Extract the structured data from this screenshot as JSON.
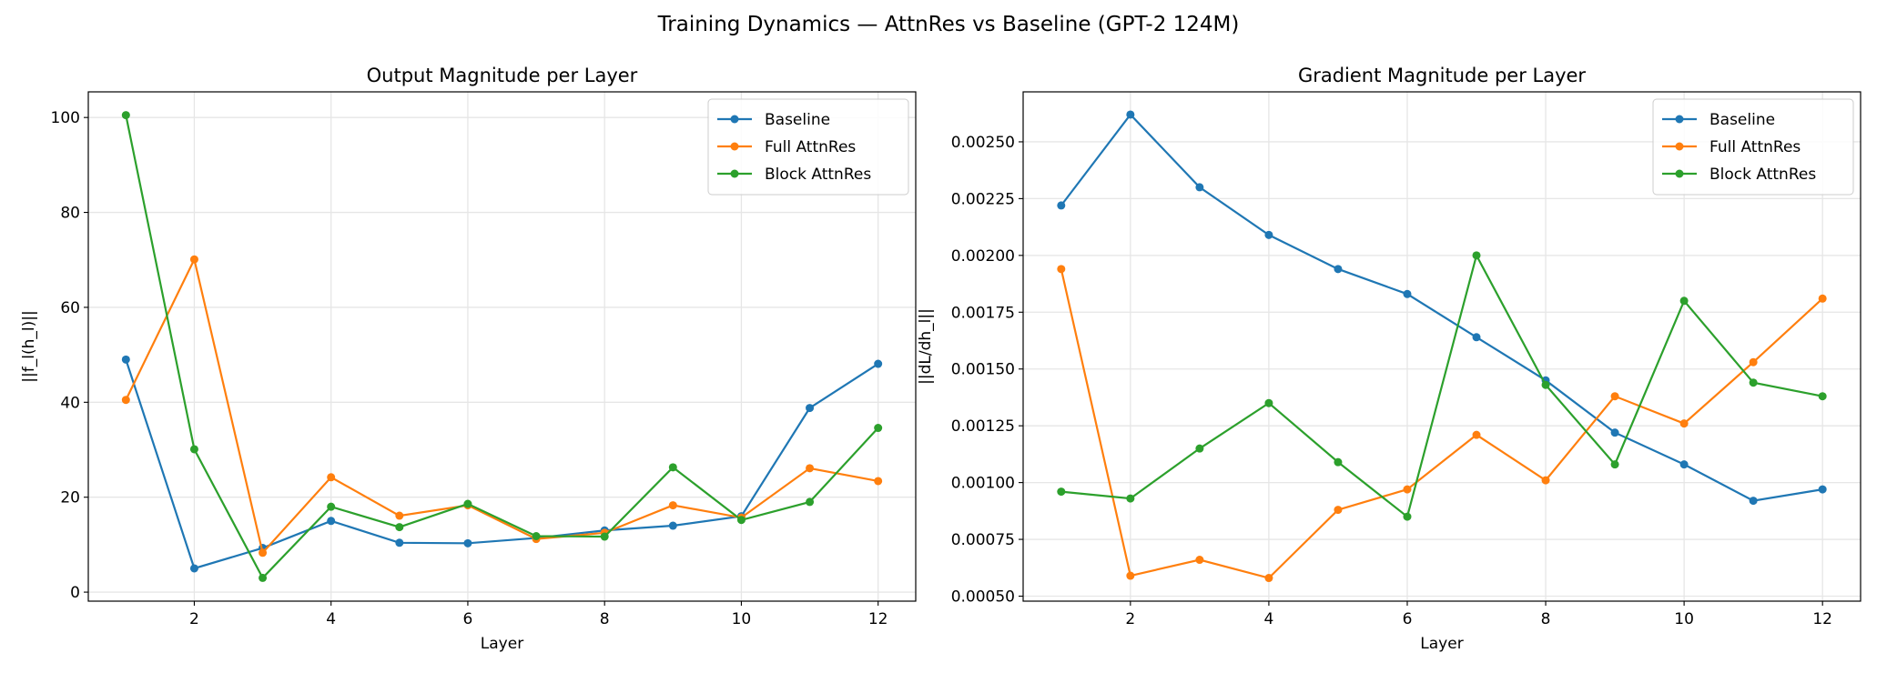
{
  "suptitle": "Training Dynamics — AttnRes vs Baseline (GPT-2 124M)",
  "colors": {
    "Baseline": "#1f77b4",
    "Full AttnRes": "#ff7f0e",
    "Block AttnRes": "#2ca02c",
    "grid": "#e6e6e6"
  },
  "chart_data": [
    {
      "type": "line",
      "title": "Output Magnitude per Layer",
      "xlabel": "Layer",
      "ylabel": "||f_l(h_l)||",
      "x": [
        1,
        2,
        3,
        4,
        5,
        6,
        7,
        8,
        9,
        10,
        11,
        12
      ],
      "xlim": [
        0.45,
        12.55
      ],
      "ylim": [
        -1.9,
        105.4
      ],
      "xticks": [
        2,
        4,
        6,
        8,
        10,
        12
      ],
      "yticks": [
        0,
        20,
        40,
        60,
        80,
        100
      ],
      "ytick_labels": [
        "0",
        "20",
        "40",
        "60",
        "80",
        "100"
      ],
      "grid": true,
      "legend_position": "top-right",
      "series": [
        {
          "name": "Baseline",
          "values": [
            49.0,
            5.0,
            9.3,
            15.0,
            10.4,
            10.3,
            11.4,
            13.0,
            14.0,
            16.0,
            38.8,
            48.1
          ]
        },
        {
          "name": "Full AttnRes",
          "values": [
            40.5,
            70.1,
            8.3,
            24.2,
            16.1,
            18.3,
            11.2,
            12.5,
            18.3,
            15.7,
            26.1,
            23.4
          ]
        },
        {
          "name": "Block AttnRes",
          "values": [
            100.5,
            30.1,
            3.0,
            18.0,
            13.7,
            18.6,
            11.8,
            11.7,
            26.3,
            15.2,
            19.0,
            34.6
          ]
        }
      ]
    },
    {
      "type": "line",
      "title": "Gradient Magnitude per Layer",
      "xlabel": "Layer",
      "ylabel": "||dL/dh_l||",
      "x": [
        1,
        2,
        3,
        4,
        5,
        6,
        7,
        8,
        9,
        10,
        11,
        12
      ],
      "xlim": [
        0.45,
        12.55
      ],
      "ylim": [
        0.000478,
        0.00272
      ],
      "xticks": [
        2,
        4,
        6,
        8,
        10,
        12
      ],
      "yticks": [
        0.0005,
        0.00075,
        0.001,
        0.00125,
        0.0015,
        0.00175,
        0.002,
        0.00225,
        0.0025
      ],
      "ytick_labels": [
        "0.00050",
        "0.00075",
        "0.00100",
        "0.00125",
        "0.00150",
        "0.00175",
        "0.00200",
        "0.00225",
        "0.00250"
      ],
      "grid": true,
      "legend_position": "top-right",
      "series": [
        {
          "name": "Baseline",
          "values": [
            0.00222,
            0.00262,
            0.0023,
            0.00209,
            0.00194,
            0.00183,
            0.00164,
            0.00145,
            0.00122,
            0.00108,
            0.00092,
            0.00097
          ]
        },
        {
          "name": "Full AttnRes",
          "values": [
            0.00194,
            0.00059,
            0.00066,
            0.00058,
            0.00088,
            0.00097,
            0.00121,
            0.00101,
            0.00138,
            0.00126,
            0.00153,
            0.00181
          ]
        },
        {
          "name": "Block AttnRes",
          "values": [
            0.00096,
            0.00093,
            0.00115,
            0.00135,
            0.00109,
            0.00085,
            0.002,
            0.00143,
            0.00108,
            0.0018,
            0.00144,
            0.00138
          ]
        }
      ]
    }
  ]
}
